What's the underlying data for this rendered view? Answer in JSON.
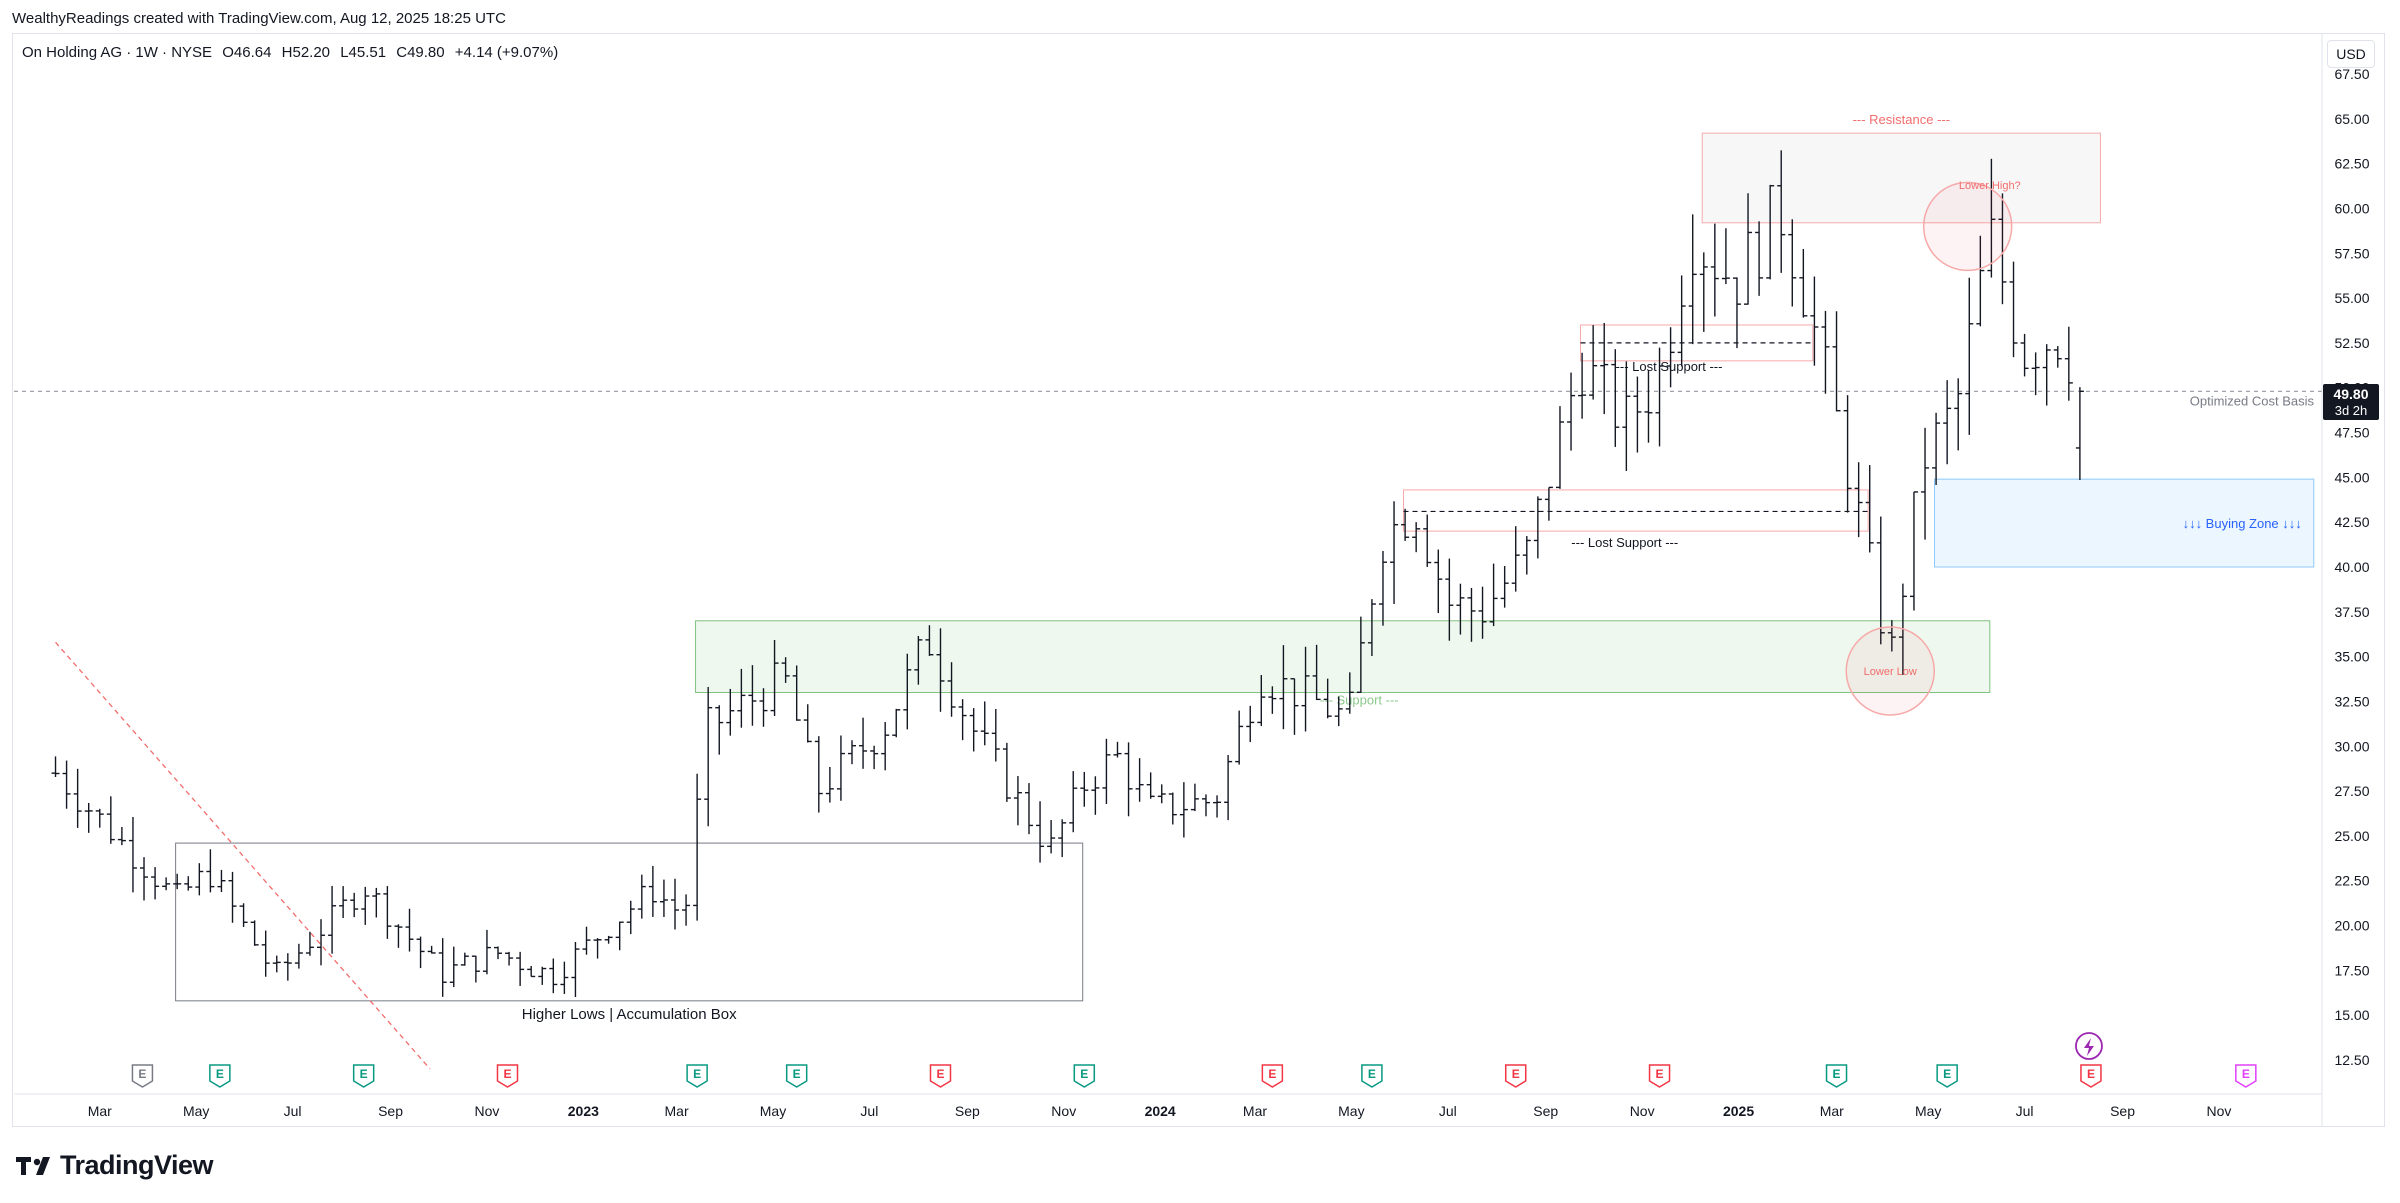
{
  "header": {
    "attribution": "WealthyReadings created with TradingView.com, Aug 12, 2025 18:25 UTC"
  },
  "legend": {
    "symbol": "On Holding AG · 1W · NYSE",
    "open": "O46.64",
    "high": "H52.20",
    "low": "L45.51",
    "close": "C49.80",
    "change": "+4.14 (+9.07%)"
  },
  "currency": "USD",
  "brand": {
    "name": "TradingView"
  },
  "price_tag": {
    "price": "49.80",
    "countdown": "3d 2h"
  },
  "chart_data": {
    "type": "ohlc",
    "ylim": [
      11.5,
      68.5
    ],
    "y_ticks": [
      "12.50",
      "15.00",
      "17.50",
      "20.00",
      "22.50",
      "25.00",
      "27.50",
      "30.00",
      "32.50",
      "35.00",
      "37.50",
      "40.00",
      "42.50",
      "45.00",
      "47.50",
      "50.00",
      "52.50",
      "55.00",
      "57.50",
      "60.00",
      "62.50",
      "65.00",
      "67.50"
    ],
    "x_labels": [
      {
        "label": "Mar",
        "date": "2022-03-01"
      },
      {
        "label": "May",
        "date": "2022-05-01"
      },
      {
        "label": "Jul",
        "date": "2022-07-01"
      },
      {
        "label": "Sep",
        "date": "2022-09-01"
      },
      {
        "label": "Nov",
        "date": "2022-11-01"
      },
      {
        "label": "2023",
        "date": "2023-01-01",
        "bold": true
      },
      {
        "label": "Mar",
        "date": "2023-03-01"
      },
      {
        "label": "May",
        "date": "2023-05-01"
      },
      {
        "label": "Jul",
        "date": "2023-07-01"
      },
      {
        "label": "Sep",
        "date": "2023-09-01"
      },
      {
        "label": "Nov",
        "date": "2023-11-01"
      },
      {
        "label": "2024",
        "date": "2024-01-01",
        "bold": true
      },
      {
        "label": "Mar",
        "date": "2024-03-01"
      },
      {
        "label": "May",
        "date": "2024-05-01"
      },
      {
        "label": "Jul",
        "date": "2024-07-01"
      },
      {
        "label": "Sep",
        "date": "2024-09-01"
      },
      {
        "label": "Nov",
        "date": "2024-11-01"
      },
      {
        "label": "2025",
        "date": "2025-01-01",
        "bold": true
      },
      {
        "label": "Mar",
        "date": "2025-03-01"
      },
      {
        "label": "May",
        "date": "2025-05-01"
      },
      {
        "label": "Jul",
        "date": "2025-07-01"
      },
      {
        "label": "Sep",
        "date": "2025-09-01"
      },
      {
        "label": "Nov",
        "date": "2025-11-01"
      }
    ],
    "anchors": [
      [
        "2022-02-01",
        28.5
      ],
      [
        "2022-04-18",
        21.5
      ],
      [
        "2022-05-09",
        23.0
      ],
      [
        "2022-06-20",
        17.2
      ],
      [
        "2022-08-15",
        22.2
      ],
      [
        "2022-10-03",
        17.3
      ],
      [
        "2022-11-07",
        18.5
      ],
      [
        "2022-12-12",
        17.2
      ],
      [
        "2023-02-13",
        22.0
      ],
      [
        "2023-03-06",
        20.5
      ],
      [
        "2023-03-20",
        31.0
      ],
      [
        "2023-05-08",
        33.8
      ],
      [
        "2023-05-29",
        27.5
      ],
      [
        "2023-07-10",
        31.0
      ],
      [
        "2023-08-07",
        36.0
      ],
      [
        "2023-09-04",
        31.0
      ],
      [
        "2023-10-23",
        24.2
      ],
      [
        "2023-11-13",
        27.8
      ],
      [
        "2023-12-04",
        29.5
      ],
      [
        "2023-12-25",
        26.5
      ],
      [
        "2024-02-05",
        27.0
      ],
      [
        "2024-03-04",
        34.0
      ],
      [
        "2024-04-08",
        32.5
      ],
      [
        "2024-04-29",
        31.5
      ],
      [
        "2024-05-20",
        41.5
      ],
      [
        "2024-06-10",
        43.5
      ],
      [
        "2024-07-01",
        38.0
      ],
      [
        "2024-07-22",
        37.5
      ],
      [
        "2024-08-19",
        40.5
      ],
      [
        "2024-09-09",
        47.0
      ],
      [
        "2024-09-23",
        51.5
      ],
      [
        "2024-10-21",
        48.0
      ],
      [
        "2024-11-11",
        50.5
      ],
      [
        "2024-12-02",
        58.5
      ],
      [
        "2024-12-30",
        56.0
      ],
      [
        "2025-01-27",
        60.0
      ],
      [
        "2025-02-10",
        56.0
      ],
      [
        "2025-03-10",
        46.0
      ],
      [
        "2025-04-07",
        34.8
      ],
      [
        "2025-04-28",
        46.0
      ],
      [
        "2025-05-19",
        49.0
      ],
      [
        "2025-06-09",
        58.5
      ],
      [
        "2025-06-30",
        52.0
      ],
      [
        "2025-07-21",
        53.0
      ],
      [
        "2025-08-11",
        49.8
      ]
    ],
    "zones": [
      {
        "name": "Higher Lows | Accumulation Box",
        "from": "2022-04-18",
        "to": "2023-11-13",
        "low": 15.8,
        "high": 24.6,
        "fill": "none",
        "stroke": "#787b86",
        "label_color": "#131722",
        "label_pos": "bottom"
      },
      {
        "name": "--- Support ---",
        "from": "2023-03-13",
        "to": "2025-06-09",
        "low": 33.0,
        "high": 37.0,
        "fill": "rgba(76,175,80,0.09)",
        "stroke": "#7fc27f",
        "label_color": "#8bc98b",
        "label_pos": "inside-bottom",
        "label_date": "2024-05-06"
      },
      {
        "name": "--- Resistance ---",
        "from": "2024-12-09",
        "to": "2025-08-18",
        "low": 59.2,
        "high": 64.2,
        "fill": "rgba(120,123,134,0.06)",
        "stroke": "#f7a9a9",
        "label_color": "#f26d6d",
        "label_pos": "top"
      },
      {
        "name": "↓↓↓ Buying Zone ↓↓↓",
        "from": "2025-05-05",
        "to": "2025-12-31",
        "low": 40.0,
        "high": 44.9,
        "fill": "rgba(33,150,243,0.09)",
        "stroke": "#90caf9",
        "label_color": "#2962ff",
        "label_pos": "right"
      }
    ],
    "lost_support": [
      {
        "name": "--- Lost Support ---",
        "from": "2024-09-23",
        "to": "2025-02-17",
        "low": 51.5,
        "high": 53.5,
        "level": 52.5,
        "label_date": "2024-11-18",
        "label_price": 51.2
      },
      {
        "name": "--- Lost Support ---",
        "from": "2024-06-03",
        "to": "2025-03-24",
        "low": 42.0,
        "high": 44.3,
        "level": 43.1,
        "label_date": "2024-10-21",
        "label_price": 41.4
      }
    ],
    "circles": [
      {
        "name": "Lower High?",
        "date": "2025-05-26",
        "price": 59.0,
        "label_date": "2025-06-09",
        "label_price": 61.3
      },
      {
        "name": "Lower Low",
        "date": "2025-04-07",
        "price": 34.2,
        "label_date": "2025-04-07",
        "label_price": 34.2
      }
    ],
    "cost_basis": {
      "name": "Optimized Cost Basis",
      "price": 49.8
    },
    "trendline": {
      "from": [
        "2022-02-01",
        35.8
      ],
      "to": [
        "2022-09-26",
        12.0
      ]
    },
    "events": [
      {
        "type": "E",
        "date": "2022-03-28",
        "color": "#787b86"
      },
      {
        "type": "E",
        "date": "2022-05-16",
        "color": "#089981"
      },
      {
        "type": "E",
        "date": "2022-08-15",
        "color": "#089981"
      },
      {
        "type": "E",
        "date": "2022-11-14",
        "color": "#f23645"
      },
      {
        "type": "E",
        "date": "2023-03-14",
        "color": "#089981"
      },
      {
        "type": "E",
        "date": "2023-05-16",
        "color": "#089981"
      },
      {
        "type": "E",
        "date": "2023-08-15",
        "color": "#f23645"
      },
      {
        "type": "E",
        "date": "2023-11-14",
        "color": "#089981"
      },
      {
        "type": "E",
        "date": "2024-03-12",
        "color": "#f23645"
      },
      {
        "type": "E",
        "date": "2024-05-14",
        "color": "#089981"
      },
      {
        "type": "E",
        "date": "2024-08-13",
        "color": "#f23645"
      },
      {
        "type": "E",
        "date": "2024-11-12",
        "color": "#f23645"
      },
      {
        "type": "E",
        "date": "2025-03-04",
        "color": "#089981"
      },
      {
        "type": "E",
        "date": "2025-05-13",
        "color": "#089981"
      },
      {
        "type": "E",
        "date": "2025-08-12",
        "color": "#f23645"
      },
      {
        "type": "E",
        "date": "2025-11-18",
        "color": "#e040fb"
      }
    ]
  }
}
